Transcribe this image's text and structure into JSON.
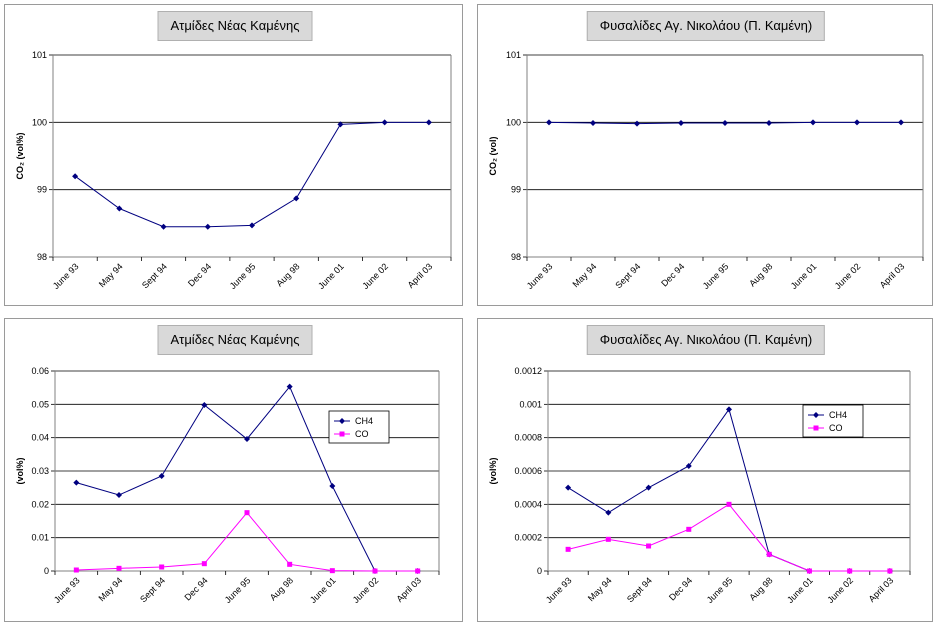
{
  "chart_data": [
    {
      "type": "line",
      "title": "Ατμίδες Νέας Καμένης",
      "ylabel": "CO₂ (vol%)",
      "categories": [
        "June 93",
        "May 94",
        "Sept 94",
        "Dec 94",
        "June 95",
        "Aug 98",
        "June 01",
        "June 02",
        "April 03"
      ],
      "series": [
        {
          "name": "CO2",
          "color": "#000080",
          "values": [
            99.2,
            98.72,
            98.45,
            98.45,
            98.47,
            98.87,
            99.97,
            100.0,
            100.0
          ]
        }
      ],
      "ylim": [
        98,
        101
      ],
      "yticks": [
        98,
        99,
        100,
        101
      ],
      "ytick_labels": [
        "98",
        "99",
        "100",
        "101"
      ],
      "legend": null
    },
    {
      "type": "line",
      "title": "Φυσαλίδες Αγ. Νικολάου (Π. Καμένη)",
      "ylabel": "CO₂ (vol)",
      "categories": [
        "June 93",
        "May 94",
        "Sept 94",
        "Dec 94",
        "June 95",
        "Aug 98",
        "June 01",
        "June 02",
        "April 03"
      ],
      "series": [
        {
          "name": "CO2",
          "color": "#000080",
          "values": [
            100.0,
            99.99,
            99.98,
            99.99,
            99.99,
            99.99,
            100.0,
            100.0,
            100.0
          ]
        }
      ],
      "ylim": [
        98,
        101
      ],
      "yticks": [
        98,
        99,
        100,
        101
      ],
      "ytick_labels": [
        "98",
        "99",
        "100",
        "101"
      ],
      "legend": null
    },
    {
      "type": "line",
      "title": "Ατμίδες Νέας Καμένης",
      "ylabel": "(vol%)",
      "categories": [
        "June 93",
        "May 94",
        "Sept 94",
        "Dec 94",
        "June 95",
        "Aug 98",
        "June 01",
        "June 02",
        "April 03"
      ],
      "series": [
        {
          "name": "CH4",
          "color": "#000080",
          "values": [
            0.0265,
            0.0228,
            0.0285,
            0.0498,
            0.0396,
            0.0553,
            0.0255,
            0.0,
            0.0
          ]
        },
        {
          "name": "CO",
          "color": "#ff00ff",
          "values": [
            0.0003,
            0.0008,
            0.0012,
            0.0022,
            0.0175,
            0.002,
            0.0001,
            0.0,
            0.0
          ]
        }
      ],
      "ylim": [
        0,
        0.06
      ],
      "yticks": [
        0,
        0.01,
        0.02,
        0.03,
        0.04,
        0.05,
        0.06
      ],
      "ytick_labels": [
        "0",
        "0.01",
        "0.02",
        "0.03",
        "0.04",
        "0.05",
        "0.06"
      ],
      "legend": "upper-right"
    },
    {
      "type": "line",
      "title": "Φυσαλίδες Αγ. Νικολάου (Π. Καμένη)",
      "ylabel": "(vol%)",
      "categories": [
        "June 93",
        "May 94",
        "Sept 94",
        "Dec 94",
        "June 95",
        "Aug 98",
        "June 01",
        "June 02",
        "April 03"
      ],
      "series": [
        {
          "name": "CH4",
          "color": "#000080",
          "values": [
            0.0005,
            0.00035,
            0.0005,
            0.00063,
            0.00097,
            0.0001,
            0.0,
            0.0,
            0.0
          ]
        },
        {
          "name": "CO",
          "color": "#ff00ff",
          "values": [
            0.00013,
            0.00019,
            0.00015,
            0.00025,
            0.0004,
            0.0001,
            0.0,
            0.0,
            0.0
          ]
        }
      ],
      "ylim": [
        0,
        0.0012
      ],
      "yticks": [
        0,
        0.0002,
        0.0004,
        0.0006,
        0.0008,
        0.001,
        0.0012
      ],
      "ytick_labels": [
        "0",
        "0.0002",
        "0.0004",
        "0.0006",
        "0.0008",
        "0.001",
        "0.0012"
      ],
      "legend": "upper-right"
    }
  ]
}
